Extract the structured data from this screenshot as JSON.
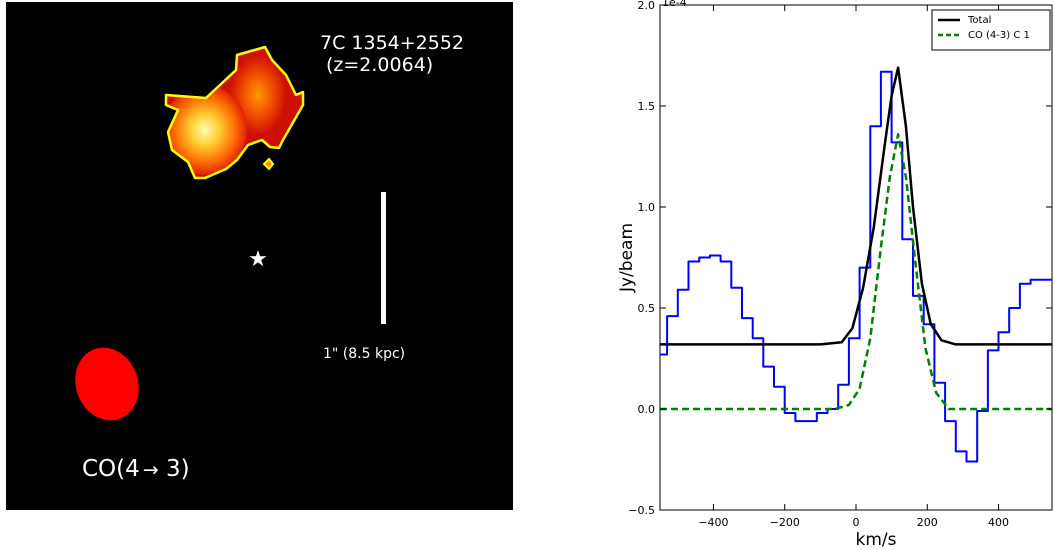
{
  "image_panel": {
    "source_name": "7C 1354+2552",
    "redshift": "(z=2.0064)",
    "scale_label": "1\" (8.5 kpc)",
    "line_label_prefix": "CO(4",
    "line_label_arrow": "→",
    "line_label_suffix": " 3)",
    "marker_glyph": "★",
    "colors": {
      "background": "#000000",
      "contour": "#ffff00",
      "beam": "#ff0000",
      "emission_core": "#ffffaa",
      "emission_mid": "#ff8800",
      "emission_outer": "#cc1100"
    }
  },
  "chart_data": {
    "type": "line",
    "title": "",
    "xlabel": "km/s",
    "ylabel": "Jy/beam",
    "y_multiplier": "1e-4",
    "xlim": [
      -550,
      550
    ],
    "ylim": [
      -0.5,
      2.0
    ],
    "xticks": [
      -400,
      -200,
      0,
      200,
      400
    ],
    "xtick_labels": [
      "−400",
      "−200",
      "0",
      "200",
      "400"
    ],
    "yticks": [
      -0.5,
      0.0,
      0.5,
      1.0,
      1.5,
      2.0
    ],
    "ytick_labels": [
      "−0.5",
      "0.0",
      "0.5",
      "1.0",
      "1.5",
      "2.0"
    ],
    "legend_position": "top-right",
    "series": [
      {
        "kind": "step",
        "color": "#0000ff",
        "x": [
          -550,
          -530,
          -500,
          -470,
          -440,
          -410,
          -380,
          -350,
          -320,
          -290,
          -260,
          -230,
          -200,
          -170,
          -140,
          -110,
          -80,
          -50,
          -20,
          10,
          40,
          70,
          100,
          130,
          160,
          190,
          220,
          250,
          280,
          310,
          340,
          370,
          400,
          430,
          460,
          490,
          520,
          550
        ],
        "y": [
          0.27,
          0.46,
          0.59,
          0.73,
          0.75,
          0.76,
          0.73,
          0.6,
          0.45,
          0.35,
          0.21,
          0.11,
          -0.02,
          -0.06,
          -0.06,
          -0.02,
          0.0,
          0.12,
          0.35,
          0.7,
          1.4,
          1.67,
          1.32,
          0.84,
          0.56,
          0.42,
          0.13,
          -0.06,
          -0.21,
          -0.26,
          -0.01,
          0.29,
          0.38,
          0.5,
          0.62,
          0.64,
          0.64,
          0.64
        ]
      },
      {
        "name": "Total",
        "kind": "line",
        "color": "#000000",
        "x": [
          -550,
          -100,
          -40,
          -10,
          20,
          50,
          80,
          100,
          118,
          140,
          160,
          185,
          210,
          240,
          280,
          550
        ],
        "y": [
          0.32,
          0.32,
          0.33,
          0.4,
          0.6,
          0.9,
          1.3,
          1.55,
          1.69,
          1.4,
          1.0,
          0.62,
          0.42,
          0.34,
          0.32,
          0.32
        ]
      },
      {
        "name": "CO (4-3) C 1",
        "kind": "dashed",
        "color": "#008000",
        "x": [
          -550,
          -60,
          -20,
          10,
          40,
          70,
          95,
          118,
          140,
          165,
          195,
          225,
          260,
          550
        ],
        "y": [
          0.0,
          0.0,
          0.02,
          0.1,
          0.35,
          0.8,
          1.15,
          1.36,
          1.15,
          0.75,
          0.3,
          0.08,
          0.0,
          0.0
        ]
      }
    ]
  }
}
